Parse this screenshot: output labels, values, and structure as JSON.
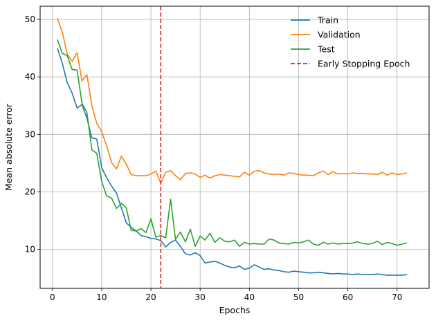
{
  "chart_data": {
    "type": "line",
    "title": "",
    "xlabel": "Epochs",
    "ylabel": "Mean absolute error",
    "xlim": [
      -2.5,
      76.5
    ],
    "ylim": [
      3.2,
      52.3
    ],
    "xticks": [
      0,
      10,
      20,
      30,
      40,
      50,
      60,
      70
    ],
    "yticks": [
      10,
      20,
      30,
      40,
      50
    ],
    "grid": true,
    "legend_position": "top-right",
    "x": [
      1,
      2,
      3,
      4,
      5,
      6,
      7,
      8,
      9,
      10,
      11,
      12,
      13,
      14,
      15,
      16,
      17,
      18,
      19,
      20,
      21,
      22,
      23,
      24,
      25,
      26,
      27,
      28,
      29,
      30,
      31,
      32,
      33,
      34,
      35,
      36,
      37,
      38,
      39,
      40,
      41,
      42,
      43,
      44,
      45,
      46,
      47,
      48,
      49,
      50,
      51,
      52,
      53,
      54,
      55,
      56,
      57,
      58,
      59,
      60,
      61,
      62,
      63,
      64,
      65,
      66,
      67,
      68,
      69,
      70,
      71,
      72
    ],
    "series": [
      {
        "name": "Train",
        "color": "#1f77b4",
        "style": "solid",
        "values": [
          45.0,
          42.4,
          39.0,
          37.2,
          34.6,
          35.2,
          32.8,
          29.4,
          29.2,
          24.2,
          22.5,
          21.0,
          19.8,
          17.2,
          14.6,
          13.8,
          13.2,
          12.4,
          12.2,
          11.9,
          11.8,
          11.5,
          10.4,
          11.2,
          11.6,
          10.5,
          9.2,
          9.0,
          9.4,
          8.9,
          7.6,
          7.8,
          7.9,
          7.6,
          7.2,
          6.9,
          6.8,
          7.1,
          6.5,
          6.7,
          7.3,
          6.9,
          6.5,
          6.6,
          6.4,
          6.3,
          6.1,
          6.0,
          6.2,
          6.1,
          6.0,
          5.9,
          5.9,
          6.0,
          5.9,
          5.8,
          5.7,
          5.8,
          5.7,
          5.7,
          5.6,
          5.7,
          5.6,
          5.6,
          5.6,
          5.7,
          5.6,
          5.5,
          5.5,
          5.5,
          5.5,
          5.6
        ]
      },
      {
        "name": "Validation",
        "color": "#ff7f0e",
        "style": "solid",
        "values": [
          50.2,
          47.8,
          44.0,
          42.7,
          44.2,
          39.3,
          40.4,
          35.0,
          31.9,
          30.5,
          28.0,
          25.1,
          24.0,
          26.2,
          24.8,
          23.0,
          22.8,
          22.8,
          22.8,
          23.1,
          23.6,
          21.5,
          23.4,
          23.7,
          22.8,
          22.1,
          23.2,
          23.3,
          23.1,
          22.5,
          22.9,
          22.4,
          22.8,
          23.0,
          22.9,
          22.8,
          22.7,
          22.6,
          23.4,
          22.9,
          23.6,
          23.7,
          23.3,
          23.1,
          23.0,
          23.1,
          22.9,
          23.3,
          23.2,
          23.0,
          22.9,
          22.9,
          22.8,
          23.3,
          23.6,
          23.0,
          23.5,
          23.1,
          23.2,
          23.1,
          23.3,
          23.2,
          23.2,
          23.1,
          23.1,
          23.0,
          23.4,
          22.9,
          23.3,
          23.0,
          23.1,
          23.3
        ]
      },
      {
        "name": "Test",
        "color": "#2ca02c",
        "style": "solid",
        "values": [
          46.5,
          44.1,
          43.7,
          41.3,
          41.2,
          35.4,
          33.8,
          27.3,
          26.7,
          21.8,
          19.3,
          18.9,
          17.1,
          18.0,
          17.2,
          13.3,
          13.2,
          13.6,
          12.9,
          15.3,
          12.1,
          12.4,
          12.0,
          18.7,
          11.7,
          13.0,
          11.3,
          13.5,
          10.5,
          12.3,
          11.6,
          12.8,
          11.2,
          12.0,
          11.4,
          11.3,
          11.6,
          10.5,
          11.2,
          10.9,
          11.0,
          10.9,
          10.9,
          11.8,
          11.6,
          11.1,
          11.0,
          10.9,
          11.2,
          11.1,
          11.3,
          11.6,
          10.9,
          10.7,
          11.2,
          10.9,
          11.1,
          10.9,
          11.0,
          11.0,
          11.1,
          11.3,
          11.0,
          10.9,
          11.0,
          11.4,
          10.8,
          11.2,
          11.0,
          10.7,
          10.9,
          11.1
        ]
      },
      {
        "name": "Early Stopping Epoch",
        "color": "#d62728",
        "style": "dashed",
        "vline_x": 22
      }
    ]
  }
}
